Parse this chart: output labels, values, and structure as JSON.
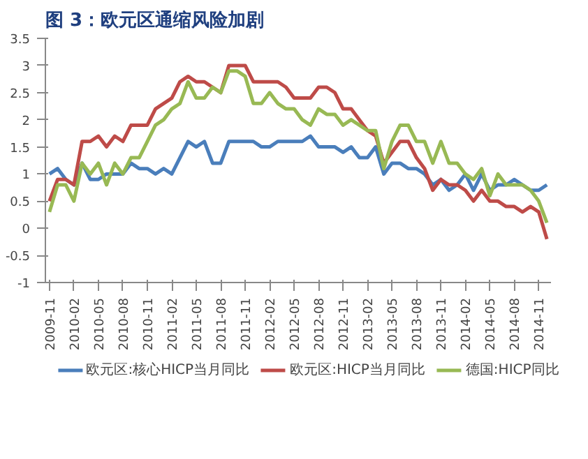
{
  "chart_data": {
    "type": "line",
    "title": "图 3：欧元区通缩风险加剧",
    "categories": [
      "2009-11",
      null,
      null,
      "2010-02",
      null,
      null,
      "2010-05",
      null,
      null,
      "2010-08",
      null,
      null,
      "2010-11",
      null,
      null,
      "2011-02",
      null,
      null,
      "2011-05",
      null,
      null,
      "2011-08",
      null,
      null,
      "2011-11",
      null,
      null,
      "2012-02",
      null,
      null,
      "2012-05",
      null,
      null,
      "2012-08",
      null,
      null,
      "2012-11",
      null,
      null,
      "2013-02",
      null,
      null,
      "2013-05",
      null,
      null,
      "2013-08",
      null,
      null,
      "2013-11",
      null,
      null,
      "2014-02",
      null,
      null,
      "2014-05",
      null,
      null,
      "2014-08",
      null,
      null,
      "2014-11",
      null
    ],
    "series": [
      {
        "name": "欧元区:核心HICP当月同比",
        "color": "#4a7ebb",
        "values": [
          1.0,
          1.1,
          0.9,
          0.8,
          1.2,
          0.9,
          0.9,
          1.0,
          1.0,
          1.0,
          1.2,
          1.1,
          1.1,
          1.0,
          1.1,
          1.0,
          1.3,
          1.6,
          1.5,
          1.6,
          1.2,
          1.2,
          1.6,
          1.6,
          1.6,
          1.6,
          1.5,
          1.5,
          1.6,
          1.6,
          1.6,
          1.6,
          1.7,
          1.5,
          1.5,
          1.5,
          1.4,
          1.5,
          1.3,
          1.3,
          1.5,
          1.0,
          1.2,
          1.2,
          1.1,
          1.1,
          1.0,
          0.8,
          0.9,
          0.7,
          0.8,
          1.0,
          0.7,
          1.0,
          0.7,
          0.8,
          0.8,
          0.9,
          0.8,
          0.7,
          0.7,
          0.8
        ]
      },
      {
        "name": "欧元区:HICP当月同比",
        "color": "#be4b48",
        "values": [
          0.5,
          0.9,
          0.9,
          0.8,
          1.6,
          1.6,
          1.7,
          1.5,
          1.7,
          1.6,
          1.9,
          1.9,
          1.9,
          2.2,
          2.3,
          2.4,
          2.7,
          2.8,
          2.7,
          2.7,
          2.6,
          2.5,
          3.0,
          3.0,
          3.0,
          2.7,
          2.7,
          2.7,
          2.7,
          2.6,
          2.4,
          2.4,
          2.4,
          2.6,
          2.6,
          2.5,
          2.2,
          2.2,
          2.0,
          1.8,
          1.7,
          1.2,
          1.4,
          1.6,
          1.6,
          1.3,
          1.1,
          0.7,
          0.9,
          0.8,
          0.8,
          0.7,
          0.5,
          0.7,
          0.5,
          0.5,
          0.4,
          0.4,
          0.3,
          0.4,
          0.3,
          -0.2
        ]
      },
      {
        "name": "德国:HICP同比",
        "color": "#98b954",
        "values": [
          0.3,
          0.8,
          0.8,
          0.5,
          1.2,
          1.0,
          1.2,
          0.8,
          1.2,
          1.0,
          1.3,
          1.3,
          1.6,
          1.9,
          2.0,
          2.2,
          2.3,
          2.7,
          2.4,
          2.4,
          2.6,
          2.5,
          2.9,
          2.9,
          2.8,
          2.3,
          2.3,
          2.5,
          2.3,
          2.2,
          2.2,
          2.0,
          1.9,
          2.2,
          2.1,
          2.1,
          1.9,
          2.0,
          1.9,
          1.8,
          1.8,
          1.1,
          1.6,
          1.9,
          1.9,
          1.6,
          1.6,
          1.2,
          1.6,
          1.2,
          1.2,
          1.0,
          0.9,
          1.1,
          0.6,
          1.0,
          0.8,
          0.8,
          0.8,
          0.7,
          0.5,
          0.1
        ]
      }
    ],
    "ylim": [
      -1,
      3.5
    ],
    "yticks": [
      -1,
      -0.5,
      0,
      0.5,
      1,
      1.5,
      2,
      2.5,
      3,
      3.5
    ],
    "grid": false,
    "legend": "bottom",
    "marker": "none",
    "line_style": "solid"
  }
}
